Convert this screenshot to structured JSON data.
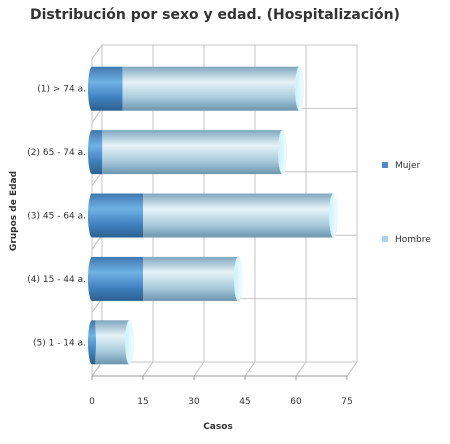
{
  "chart_data": {
    "type": "bar",
    "orientation": "horizontal",
    "stacked": true,
    "three_d": true,
    "title": "Distribución por sexo y edad. (Hospitalización)",
    "xlabel": "Casos",
    "ylabel": "Grupos de Edad",
    "xlim": [
      0,
      75
    ],
    "xticks": [
      0,
      15,
      30,
      45,
      60,
      75
    ],
    "grid": true,
    "legend_position": "right",
    "categories": [
      "(1) > 74 a.",
      "(2) 65 - 74 a.",
      "(3) 45 - 64 a.",
      "(4) 15 - 44 a.",
      "(5) 1 - 14 a."
    ],
    "series": [
      {
        "name": "Mujer",
        "values": [
          9,
          3,
          15,
          15,
          1
        ],
        "color": "#4a8cc8"
      },
      {
        "name": "Hombre",
        "values": [
          52,
          53,
          56,
          28,
          10
        ],
        "color": "#a8d4ee"
      }
    ]
  }
}
